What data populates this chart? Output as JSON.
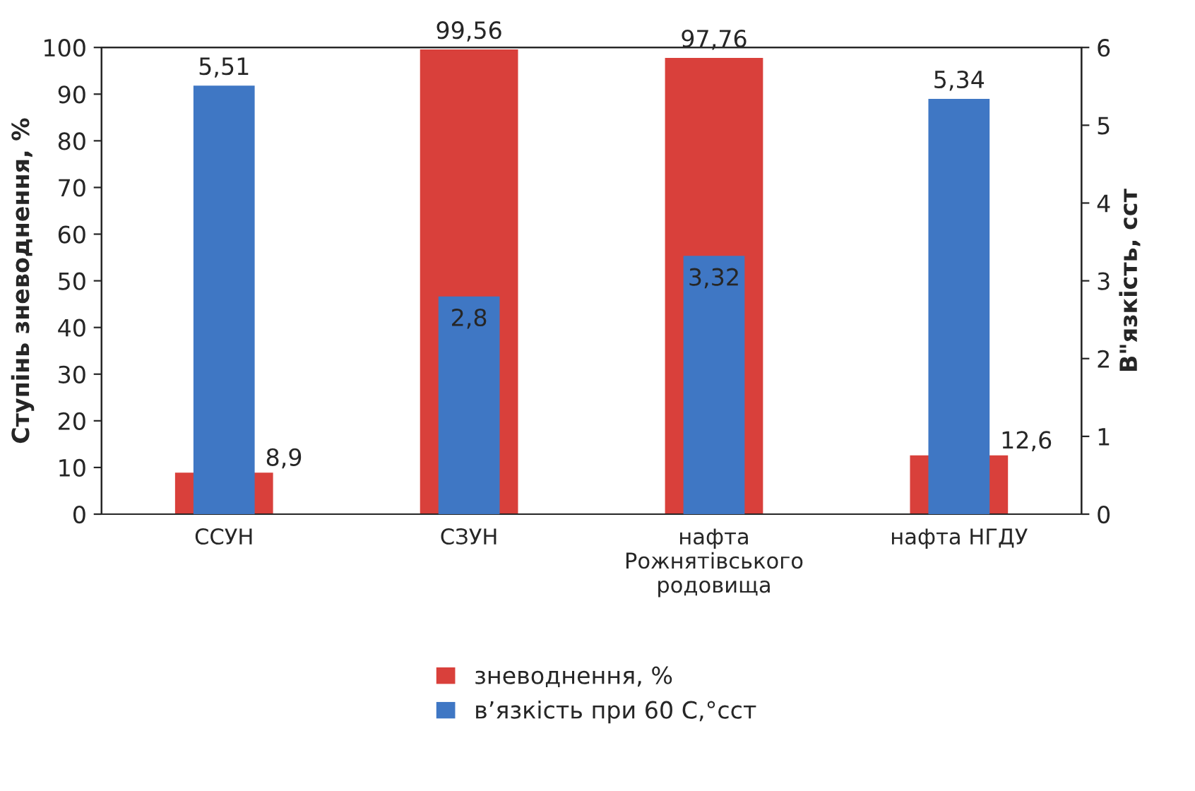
{
  "chart_data": {
    "type": "bar",
    "categories": [
      "ССУН",
      "СЗУН",
      "нафта\nРожнятівського\nродовища",
      "нафта НГДУ"
    ],
    "series": [
      {
        "name": "зневоднення, %",
        "color": "#d9403b",
        "values": [
          8.9,
          99.56,
          97.76,
          12.6
        ],
        "value_labels": [
          "8,9",
          "99,56",
          "97,76",
          "12,6"
        ]
      },
      {
        "name": "в’язкість при 60 С,°сст",
        "color": "#3f77c4",
        "values": [
          5.51,
          2.8,
          3.32,
          5.34
        ],
        "value_labels": [
          "5,51",
          "2,8",
          "3,32",
          "5,34"
        ],
        "axis": "y2"
      }
    ],
    "ylabel": "Ступінь зневоднення, %",
    "y2label": "В\"язкість, сст",
    "ylim": [
      0,
      100
    ],
    "yticks": [
      0,
      10,
      20,
      30,
      40,
      50,
      60,
      70,
      80,
      90,
      100
    ],
    "y2lim": [
      0,
      6
    ],
    "y2ticks": [
      0,
      1,
      2,
      3,
      4,
      5,
      6
    ],
    "legend": "bottom",
    "grid": false
  }
}
